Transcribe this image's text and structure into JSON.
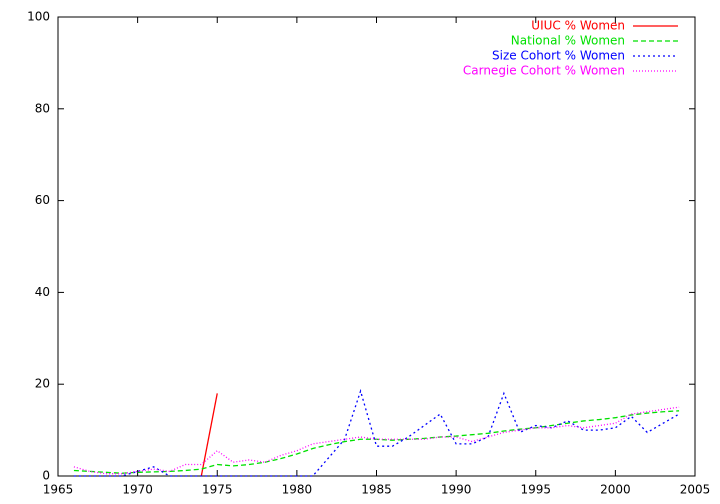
{
  "chart_data": {
    "type": "line",
    "x": [
      1966,
      1967,
      1968,
      1969,
      1970,
      1971,
      1972,
      1973,
      1974,
      1975,
      1976,
      1977,
      1978,
      1979,
      1980,
      1981,
      1982,
      1983,
      1984,
      1985,
      1986,
      1987,
      1988,
      1989,
      1990,
      1991,
      1992,
      1993,
      1994,
      1995,
      1996,
      1997,
      1998,
      1999,
      2000,
      2001,
      2002,
      2003,
      2004
    ],
    "series": [
      {
        "name": "UIUC % Women",
        "color": "#ff0000",
        "dash": "solid",
        "values": [
          null,
          null,
          null,
          null,
          null,
          null,
          null,
          null,
          0,
          18,
          null,
          null,
          null,
          null,
          null,
          null,
          null,
          null,
          null,
          null,
          null,
          null,
          null,
          null,
          null,
          null,
          null,
          null,
          null,
          null,
          null,
          null,
          null,
          null,
          null,
          null,
          null,
          null,
          null
        ]
      },
      {
        "name": "National % Women",
        "color": "#00e000",
        "dash": "dashed",
        "values": [
          1.2,
          1.0,
          0.8,
          0.6,
          0.8,
          0.9,
          1.0,
          1.2,
          1.5,
          2.5,
          2.2,
          2.5,
          3.0,
          3.8,
          4.8,
          6.0,
          6.8,
          7.5,
          8.0,
          8.0,
          7.8,
          8.0,
          8.2,
          8.5,
          8.7,
          9.0,
          9.3,
          9.8,
          10.2,
          10.5,
          11.0,
          11.5,
          12.0,
          12.3,
          12.7,
          13.3,
          13.7,
          14.0,
          14.2
        ]
      },
      {
        "name": "Size Cohort % Women",
        "color": "#0000ff",
        "dash": "dotted",
        "values": [
          0,
          0,
          0,
          0,
          1,
          2,
          0,
          0,
          0,
          0,
          0,
          0,
          0,
          0,
          0,
          0,
          4,
          8,
          18.5,
          6.5,
          6.5,
          8.5,
          11,
          13.5,
          7,
          7,
          8.5,
          18,
          9.5,
          11,
          10.5,
          12,
          10,
          10,
          10.5,
          13,
          9.5,
          11.5,
          13.5
        ]
      },
      {
        "name": "Carnegie Cohort % Women",
        "color": "#ff00ff",
        "dash": "fine-dotted",
        "values": [
          2,
          1,
          0.5,
          0.5,
          1.0,
          1.5,
          1.0,
          2.5,
          2.5,
          5.5,
          3,
          3.5,
          3,
          4.5,
          5.5,
          7,
          7.5,
          8,
          8.5,
          8,
          8,
          8,
          8,
          8.5,
          8.5,
          7.5,
          8.5,
          9.5,
          10,
          10.5,
          10.5,
          11,
          10.5,
          11,
          11.5,
          13.5,
          14,
          14.5,
          15
        ]
      }
    ],
    "xlim": [
      1965,
      2005
    ],
    "xticks": [
      1965,
      1970,
      1975,
      1980,
      1985,
      1990,
      1995,
      2000,
      2005
    ],
    "ylim": [
      0,
      100
    ],
    "yticks": [
      0,
      20,
      40,
      60,
      80,
      100
    ],
    "legend": "top-right"
  }
}
